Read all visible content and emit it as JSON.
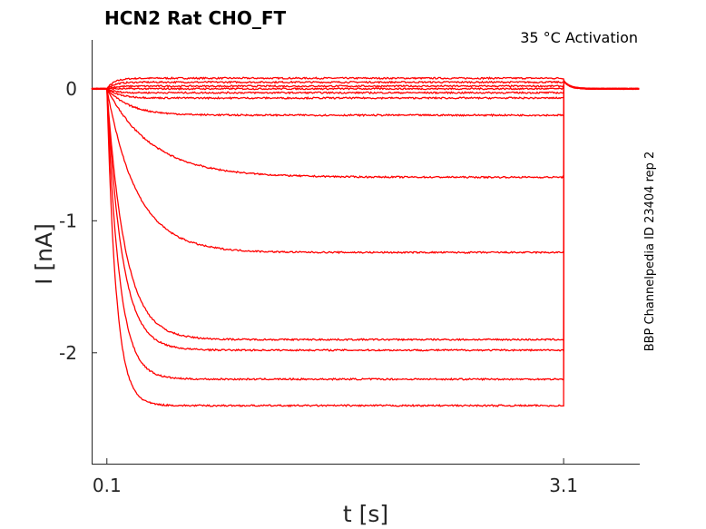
{
  "chart_data": {
    "type": "line",
    "title": "HCN2  Rat  CHO_FT",
    "annotation": "35 °C  Activation",
    "side_label": "BBP Channelpedia ID 23404 rep 2",
    "xlabel": "t [s]",
    "ylabel": "I [nA]",
    "xlim": [
      0.0,
      3.6
    ],
    "ylim": [
      -2.84,
      0.37
    ],
    "x_ticks": [
      0.1,
      3.1
    ],
    "x_tick_labels": [
      "0.1",
      "3.1"
    ],
    "y_ticks": [
      0,
      -1,
      -2
    ],
    "y_tick_labels": [
      "0",
      "-1",
      "-2"
    ],
    "grid": false,
    "step_start_s": 0.1,
    "step_end_s": 3.1,
    "color": "#ff0000",
    "series": [
      {
        "steady": 0.08,
        "tau": 0.05
      },
      {
        "steady": 0.05,
        "tau": 0.05
      },
      {
        "steady": 0.02,
        "tau": 0.05
      },
      {
        "steady": 0.0,
        "tau": 0.05
      },
      {
        "steady": -0.03,
        "tau": 0.05
      },
      {
        "steady": -0.07,
        "tau": 0.08
      },
      {
        "steady": -0.2,
        "tau": 0.15
      },
      {
        "steady": -0.67,
        "tau": 0.3
      },
      {
        "steady": -1.24,
        "tau": 0.2
      },
      {
        "steady": -1.9,
        "tau": 0.12
      },
      {
        "steady": -1.98,
        "tau": 0.1
      },
      {
        "steady": -2.2,
        "tau": 0.08
      },
      {
        "steady": -2.4,
        "tau": 0.06
      }
    ]
  }
}
